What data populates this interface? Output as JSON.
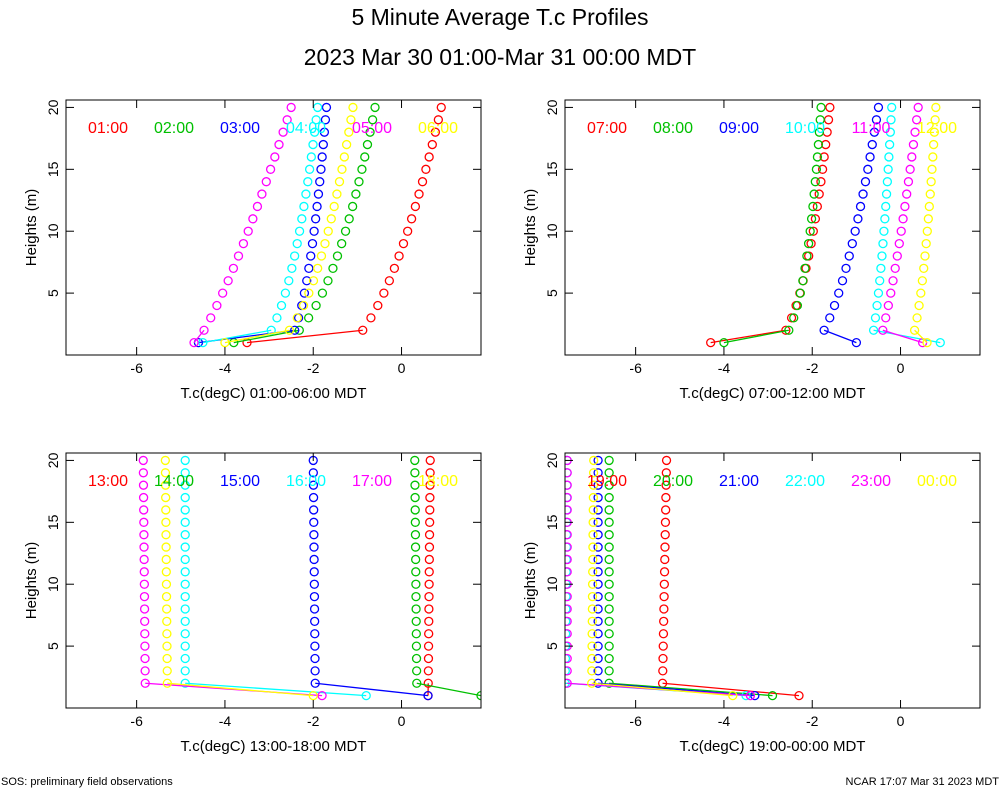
{
  "title": "5 Minute Average T.c Profiles",
  "subtitle": "2023 Mar 30 01:00-Mar 31 00:00 MDT",
  "footer": {
    "left": "SOS: preliminary field observations",
    "right": "NCAR 17:07 Mar 31 2023 MDT"
  },
  "colors": [
    "#ff0000",
    "#00c000",
    "#0000ff",
    "#00ffff",
    "#ff00ff",
    "#ffff00"
  ],
  "chart_data": [
    {
      "type": "scatter",
      "xlabel": "T.c(degC) 01:00-06:00 MDT",
      "ylabel": "Heights (m)",
      "xlim": [
        -7.6,
        1.8
      ],
      "ylim": [
        0,
        20.6
      ],
      "xticks": [
        -6,
        -4,
        -2,
        0
      ],
      "yticks": [
        5,
        10,
        15,
        20
      ],
      "heights": [
        1,
        2,
        3,
        4,
        5,
        6,
        7,
        8,
        9,
        10,
        11,
        12,
        13,
        14,
        15,
        16,
        17,
        18,
        19,
        20
      ],
      "series": [
        {
          "name": "01:00",
          "surface": [
            -3.5,
            1
          ],
          "profile": {
            "t0": -1.7,
            "t20": 0.9,
            "p": 0.5
          }
        },
        {
          "name": "02:00",
          "surface": [
            -3.8,
            1
          ],
          "profile": {
            "t0": -3.7,
            "t20": -0.6,
            "p": 0.35
          }
        },
        {
          "name": "03:00",
          "surface": [
            -4.6,
            1
          ],
          "profile": {
            "t0": -3.0,
            "t20": -1.7,
            "p": 0.35
          }
        },
        {
          "name": "04:00",
          "surface": [
            -4.5,
            1
          ],
          "profile": {
            "t0": -3.8,
            "t20": -1.9,
            "p": 0.35
          }
        },
        {
          "name": "05:00",
          "surface": [
            -4.7,
            1
          ],
          "profile": {
            "t0": -4.9,
            "t20": -2.5,
            "p": 0.75
          }
        },
        {
          "name": "06:00",
          "surface": [
            -4.0,
            1
          ],
          "profile": {
            "t0": -3.7,
            "t20": -1.1,
            "p": 0.35
          }
        }
      ]
    },
    {
      "type": "scatter",
      "xlabel": "T.c(degC) 07:00-12:00 MDT",
      "ylabel": "Heights (m)",
      "xlim": [
        -7.6,
        1.8
      ],
      "ylim": [
        0,
        20.6
      ],
      "xticks": [
        -6,
        -4,
        -2,
        0
      ],
      "yticks": [
        5,
        10,
        15,
        20
      ],
      "heights": [
        1,
        2,
        3,
        4,
        5,
        6,
        7,
        8,
        9,
        10,
        11,
        12,
        13,
        14,
        15,
        16,
        17,
        18,
        19,
        20
      ],
      "series": [
        {
          "name": "07:00",
          "surface": [
            -4.3,
            1
          ],
          "profile": {
            "t0": -3.6,
            "t20": -1.6,
            "p": 0.3
          }
        },
        {
          "name": "08:00",
          "surface": [
            -4.0,
            1
          ],
          "profile": {
            "t0": -4.3,
            "t20": -1.8,
            "p": 0.15
          }
        },
        {
          "name": "09:00",
          "surface": [
            -1.0,
            1
          ],
          "profile": {
            "t0": -2.3,
            "t20": -0.5,
            "p": 0.5
          }
        },
        {
          "name": "10:00",
          "surface": [
            0.9,
            1
          ],
          "profile": {
            "t0": -0.8,
            "t20": -0.2,
            "p": 0.5
          }
        },
        {
          "name": "11:00",
          "surface": [
            0.5,
            1
          ],
          "profile": {
            "t0": -0.6,
            "t20": 0.4,
            "p": 0.7
          }
        },
        {
          "name": "12:00",
          "surface": [
            0.6,
            1
          ],
          "profile": {
            "t0": 0.0,
            "t20": 0.8,
            "p": 0.4
          }
        }
      ]
    },
    {
      "type": "scatter",
      "xlabel": "T.c(degC) 13:00-18:00 MDT",
      "ylabel": "Heights (m)",
      "xlim": [
        -7.6,
        1.8
      ],
      "ylim": [
        0,
        20.6
      ],
      "xticks": [
        -6,
        -4,
        -2,
        0
      ],
      "yticks": [
        5,
        10,
        15,
        20
      ],
      "heights": [
        1,
        2,
        3,
        4,
        5,
        6,
        7,
        8,
        9,
        10,
        11,
        12,
        13,
        14,
        15,
        16,
        17,
        18,
        19,
        20
      ],
      "series": [
        {
          "name": "13:00",
          "surface": [
            0.6,
            1
          ],
          "profile": {
            "t0": 0.6,
            "t20": 0.65,
            "p": 1
          }
        },
        {
          "name": "14:00",
          "surface": [
            1.8,
            1
          ],
          "profile": {
            "t0": 0.35,
            "t20": 0.3,
            "p": 1
          }
        },
        {
          "name": "15:00",
          "surface": [
            0.6,
            1
          ],
          "profile": {
            "t0": -1.95,
            "t20": -2.0,
            "p": 1
          }
        },
        {
          "name": "16:00",
          "surface": [
            -0.8,
            1
          ],
          "profile": {
            "t0": -4.9,
            "t20": -4.9,
            "p": 1
          }
        },
        {
          "name": "17:00",
          "surface": [
            -1.8,
            1
          ],
          "profile": {
            "t0": -5.8,
            "t20": -5.85,
            "p": 1
          }
        },
        {
          "name": "18:00",
          "surface": [
            -2.0,
            1
          ],
          "profile": {
            "t0": -5.3,
            "t20": -5.35,
            "p": 1
          }
        }
      ]
    },
    {
      "type": "scatter",
      "xlabel": "T.c(degC) 19:00-00:00 MDT",
      "ylabel": "Heights (m)",
      "xlim": [
        -7.6,
        1.8
      ],
      "ylim": [
        0,
        20.6
      ],
      "xticks": [
        -6,
        -4,
        -2,
        0
      ],
      "yticks": [
        5,
        10,
        15,
        20
      ],
      "heights": [
        1,
        2,
        3,
        4,
        5,
        6,
        7,
        8,
        9,
        10,
        11,
        12,
        13,
        14,
        15,
        16,
        17,
        18,
        19,
        20
      ],
      "series": [
        {
          "name": "19:00",
          "surface": [
            -2.3,
            1
          ],
          "profile": {
            "t0": -5.4,
            "t20": -5.3,
            "p": 1
          }
        },
        {
          "name": "20:00",
          "surface": [
            -2.9,
            1
          ],
          "profile": {
            "t0": -6.6,
            "t20": -6.6,
            "p": 1
          }
        },
        {
          "name": "21:00",
          "surface": [
            -3.3,
            1
          ],
          "profile": {
            "t0": -6.85,
            "t20": -6.85,
            "p": 1
          }
        },
        {
          "name": "22:00",
          "surface": [
            -3.5,
            1
          ],
          "profile": {
            "t0": -7.6,
            "t20": -7.55,
            "p": 1
          }
        },
        {
          "name": "23:00",
          "surface": [
            -3.4,
            1
          ],
          "profile": {
            "t0": -7.55,
            "t20": -7.55,
            "p": 1
          }
        },
        {
          "name": "00:00",
          "surface": [
            -3.8,
            1
          ],
          "profile": {
            "t0": -7.0,
            "t20": -6.95,
            "p": 1
          }
        }
      ]
    }
  ]
}
